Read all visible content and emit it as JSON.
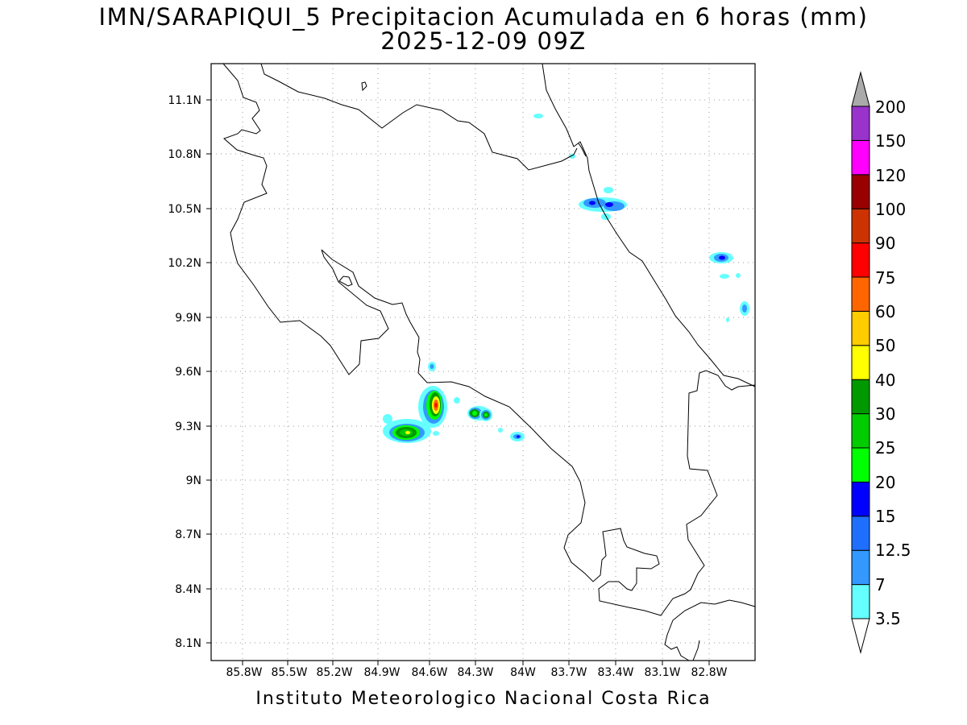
{
  "title_line1": "IMN/SARAPIQUI_5 Precipitacion Acumulada en 6 horas (mm)",
  "title_line2": "2025-12-09 09Z",
  "footer": "Instituto Meteorologico Nacional Costa Rica",
  "map": {
    "lon_range": [
      -86.0,
      -83.0
    ],
    "lat_range": [
      8.0,
      11.3
    ],
    "lon_ticks": [
      "85.8W",
      "85.5W",
      "85.2W",
      "84.9W",
      "84.6W",
      "84.3W",
      "84W",
      "83.7W",
      "83.4W",
      "83.1W",
      "82.8W"
    ],
    "lat_ticks": [
      "11.1N",
      "10.8N",
      "10.5N",
      "10.2N",
      "9.9N",
      "9.6N",
      "9.3N",
      "9N",
      "8.7N",
      "8.4N",
      "8.1N"
    ],
    "gridlines": "dotted"
  },
  "colorbar": {
    "levels": [
      "3.5",
      "7",
      "12.5",
      "15",
      "20",
      "25",
      "30",
      "40",
      "50",
      "60",
      "75",
      "90",
      "100",
      "120",
      "150",
      "200"
    ],
    "colors": [
      "#66ffff",
      "#3399ff",
      "#1f6fff",
      "#0000ff",
      "#00ff00",
      "#00cc00",
      "#009900",
      "#ffff00",
      "#ffcc00",
      "#ff6600",
      "#ff0000",
      "#cc3300",
      "#990000",
      "#ff00ff",
      "#9933cc",
      "#f2f2f2",
      "#aaaaaa"
    ],
    "extend": "both"
  }
}
